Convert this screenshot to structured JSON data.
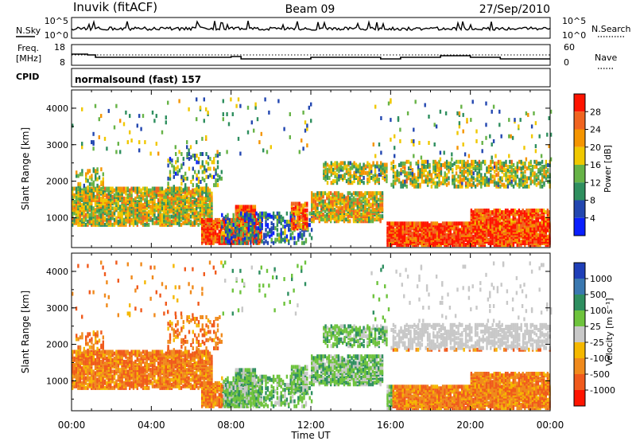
{
  "header": {
    "station": "Inuvik (fitACF)",
    "beam": "Beam 09",
    "date": "27/Sep/2010"
  },
  "sky_panel": {
    "left_label": "N.Sky",
    "right_label": "N.Search",
    "left_ticks": [
      "10^5",
      "10^0"
    ],
    "right_ticks": [
      "10^5",
      "10^0"
    ]
  },
  "freq_panel": {
    "left_label_1": "Freq.",
    "left_label_2": "[MHz]",
    "right_label": "Nave",
    "left_ticks": [
      "18",
      "8"
    ],
    "right_ticks": [
      "60",
      "0"
    ]
  },
  "cpid": {
    "label": "CPID",
    "value": "normalsound (fast) 157"
  },
  "chart_data": [
    {
      "type": "heatmap",
      "name": "power",
      "ylabel": "Slant Range [km]",
      "yticks": [
        1000,
        2000,
        3000,
        4000
      ],
      "ylim": [
        180,
        4500
      ],
      "xlim": [
        0,
        24
      ],
      "colorbar_label": "Power [dB]",
      "colorbar_ticks": [
        "4",
        "8",
        "12",
        "16",
        "20",
        "24",
        "28"
      ],
      "colors": [
        "#0a1fff",
        "#2347b0",
        "#2f8f5f",
        "#67b347",
        "#f0c800",
        "#f59500",
        "#f06420",
        "#ff1400"
      ]
    },
    {
      "type": "heatmap",
      "name": "velocity",
      "ylabel": "Slant Range [km]",
      "yticks": [
        1000,
        2000,
        3000,
        4000
      ],
      "ylim": [
        180,
        4500
      ],
      "xlim": [
        0,
        24
      ],
      "xlabel": "Time UT",
      "xticks": [
        "00:00",
        "04:00",
        "08:00",
        "12:00",
        "16:00",
        "20:00",
        "00:00"
      ],
      "colorbar_label": "Velocity [m s⁻¹]",
      "colorbar_ticks": [
        "1000",
        "500",
        "100",
        "25",
        "-25",
        "-100",
        "-500",
        "-1000"
      ],
      "colors": [
        "#1f3fb8",
        "#3a78b0",
        "#2f8f60",
        "#6ec33d",
        "#c8c8c8",
        "#f5b800",
        "#f08a1c",
        "#f05a1c",
        "#ff1400"
      ]
    }
  ]
}
